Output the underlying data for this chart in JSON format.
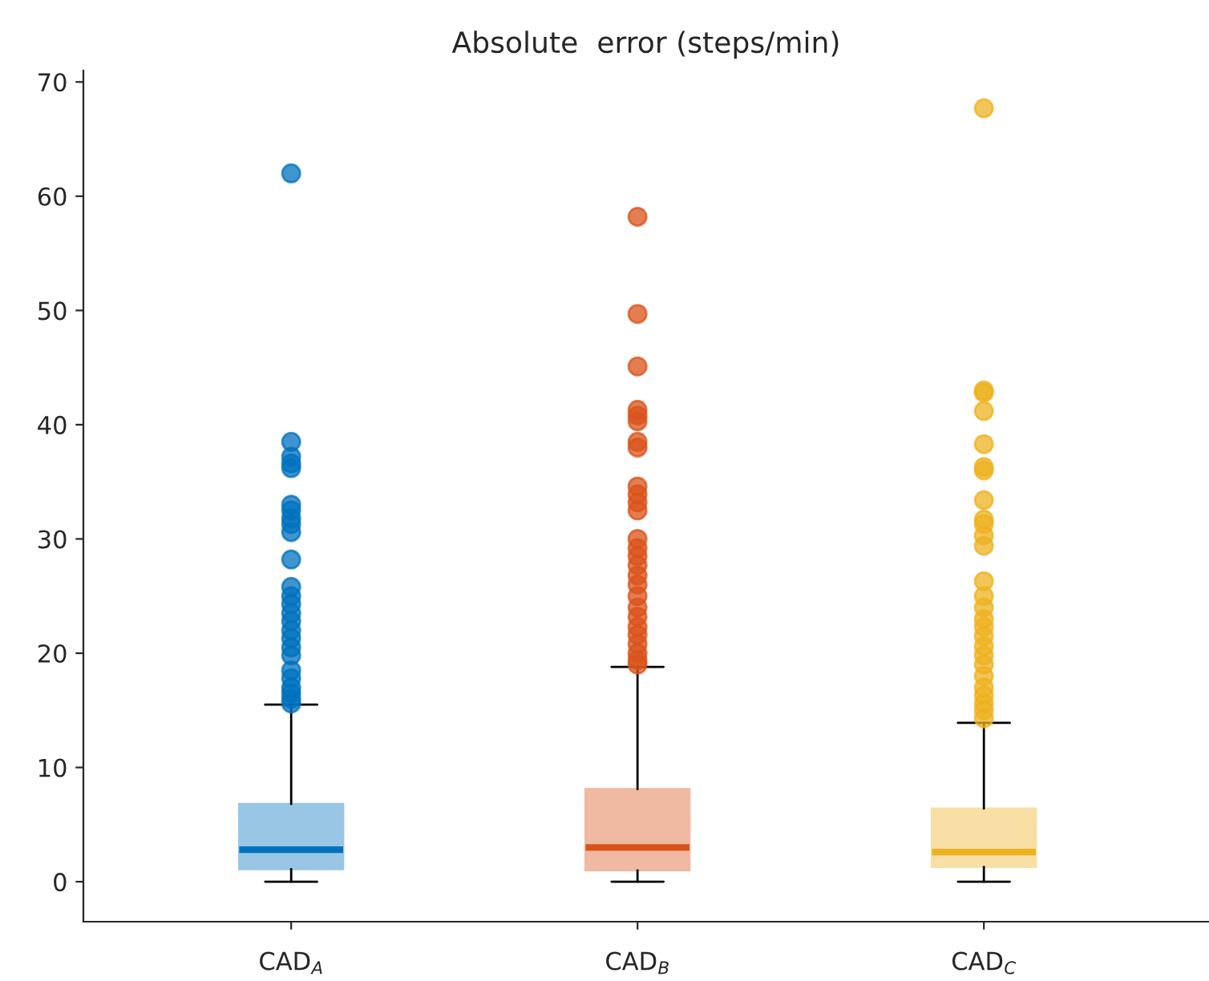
{
  "chart_data": {
    "type": "box",
    "title": "Absolute  error (steps/min)",
    "categories": [
      "CAD$_{A}$",
      "CAD$_{B}$",
      "CAD$_{C}$"
    ],
    "colors": [
      "#0072bd",
      "#d95319",
      "#edb120"
    ],
    "boxes": [
      {
        "low": 0,
        "q1": 1.1,
        "median": 2.8,
        "q3": 6.8,
        "high": 15.5,
        "outliers": [
          62,
          38.5,
          37.2,
          36.6,
          36.2,
          33,
          32.5,
          31.8,
          31.3,
          30.6,
          28.2,
          25.8,
          25,
          24.3,
          23.5,
          22.8,
          22,
          21.3,
          20.5,
          19.8,
          18.5,
          17.8,
          17,
          16.5,
          16,
          15.6
        ]
      },
      {
        "low": 0,
        "q1": 1.0,
        "median": 3.0,
        "q3": 8.1,
        "high": 18.8,
        "outliers": [
          58.2,
          49.7,
          45.1,
          41.3,
          40.8,
          40.3,
          38.5,
          38,
          34.6,
          33.9,
          33.2,
          32.5,
          30,
          29.2,
          28.5,
          27.7,
          26.8,
          26,
          25,
          24,
          23.2,
          22.3,
          21.6,
          20.8,
          20,
          19.4,
          19
        ]
      },
      {
        "low": 0,
        "q1": 1.3,
        "median": 2.6,
        "q3": 6.4,
        "high": 13.9,
        "outliers": [
          67.7,
          43,
          42.8,
          41.2,
          38.3,
          36.3,
          36,
          33.4,
          31.7,
          31.3,
          30.3,
          29.4,
          26.3,
          25,
          24,
          23,
          22.3,
          21.5,
          20.6,
          19.8,
          19,
          18,
          17,
          16.3,
          15.6,
          15,
          14.3
        ]
      }
    ],
    "ylim": [
      -3.5,
      71
    ],
    "yticks": [
      0,
      10,
      20,
      30,
      40,
      50,
      60,
      70
    ],
    "grid": false
  }
}
